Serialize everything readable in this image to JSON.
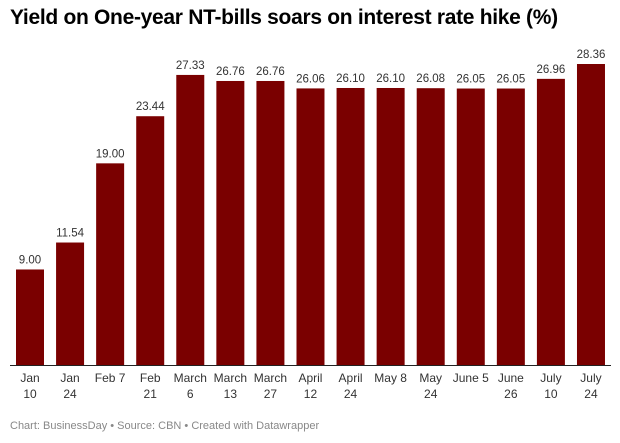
{
  "chart_data": {
    "type": "bar",
    "title": "Yield on One-year NT-bills soars on interest rate hike (%)",
    "categories": [
      [
        "Jan",
        "10"
      ],
      [
        "Jan",
        "24"
      ],
      [
        "Feb 7"
      ],
      [
        "Feb",
        "21"
      ],
      [
        "March",
        "6"
      ],
      [
        "March",
        "13"
      ],
      [
        "March",
        "27"
      ],
      [
        "April",
        "12"
      ],
      [
        "April",
        "24"
      ],
      [
        "May 8"
      ],
      [
        "May",
        "24"
      ],
      [
        "June 5"
      ],
      [
        "June",
        "26"
      ],
      [
        "July",
        "10"
      ],
      [
        "July",
        "24"
      ]
    ],
    "values": [
      9.0,
      11.54,
      19.0,
      23.44,
      27.33,
      26.76,
      26.76,
      26.06,
      26.1,
      26.1,
      26.08,
      26.05,
      26.05,
      26.96,
      28.36
    ],
    "value_labels": [
      "9.00",
      "11.54",
      "19.00",
      "23.44",
      "27.33",
      "26.76",
      "26.76",
      "26.06",
      "26.10",
      "26.10",
      "26.08",
      "26.05",
      "26.05",
      "26.96",
      "28.36"
    ],
    "xlabel": "",
    "ylabel": "",
    "ylim": [
      0,
      28.36
    ],
    "grid": false,
    "bar_color": "#7a0000"
  },
  "footer": "Chart: BusinessDay • Source: CBN • Created with Datawrapper"
}
